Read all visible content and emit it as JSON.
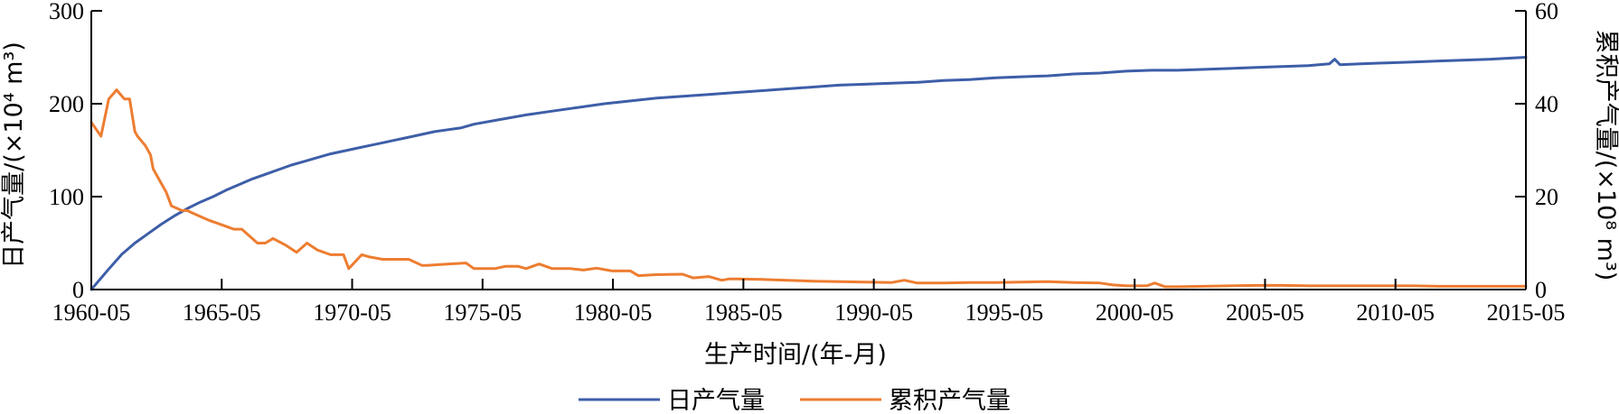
{
  "chart_data": {
    "type": "line",
    "xlabel": "生产时间/(年-月)",
    "ylabel_left": "日产气量/(×10⁴ m³)",
    "ylabel_right": "累积产气量/(×10⁸ m³)",
    "ylim_left": [
      0,
      300
    ],
    "ylim_right": [
      0,
      60
    ],
    "yticks_left": [
      0,
      100,
      200,
      300
    ],
    "yticks_right": [
      0,
      20,
      40,
      60
    ],
    "xlim": [
      1960.33,
      2015.33
    ],
    "xticks": [
      1960.33,
      1965.33,
      1970.33,
      1975.33,
      1980.33,
      1985.33,
      1990.33,
      1995.33,
      2000.33,
      2005.33,
      2010.33,
      2015.33
    ],
    "xtick_labels": [
      "1960-05",
      "1965-05",
      "1970-05",
      "1975-05",
      "1980-05",
      "1985-05",
      "1990-05",
      "1995-05",
      "2000-05",
      "2005-05",
      "2010-05",
      "2015-05"
    ],
    "legend_position": "bottom",
    "colors": {
      "series_1": "#3d5ea8",
      "series_2": "#ed7d31"
    },
    "series": [
      {
        "name": "日产气量",
        "axis": "left",
        "x": [
          1960.33,
          1961.0,
          1961.5,
          1962.0,
          1962.5,
          1963.0,
          1963.5,
          1964.0,
          1964.5,
          1965.0,
          1965.5,
          1966.0,
          1966.5,
          1967.0,
          1967.5,
          1968.0,
          1968.5,
          1969.0,
          1969.5,
          1970.0,
          1970.5,
          1971.0,
          1971.5,
          1972.0,
          1972.5,
          1973.0,
          1973.5,
          1974.0,
          1974.5,
          1975.0,
          1976.0,
          1977.0,
          1978.0,
          1979.0,
          1980.0,
          1981.0,
          1982.0,
          1983.0,
          1984.0,
          1985.0,
          1986.0,
          1987.0,
          1988.0,
          1989.0,
          1990.0,
          1991.0,
          1992.0,
          1993.0,
          1994.0,
          1995.0,
          1996.0,
          1997.0,
          1998.0,
          1999.0,
          2000.0,
          2001.0,
          2002.0,
          2003.0,
          2004.0,
          2005.0,
          2006.0,
          2007.0,
          2007.8,
          2008.0,
          2008.2,
          2009.0,
          2010.0,
          2011.0,
          2012.0,
          2013.0,
          2014.0,
          2015.33
        ],
        "values": [
          0,
          22,
          38,
          50,
          60,
          70,
          79,
          87,
          94,
          100,
          107,
          113,
          119,
          124,
          129,
          134,
          138,
          142,
          146,
          149,
          152,
          155,
          158,
          161,
          164,
          167,
          170,
          172,
          174,
          178,
          183,
          188,
          192,
          196,
          200,
          203,
          206,
          208,
          210,
          212,
          214,
          216,
          218,
          220,
          221,
          222,
          223,
          225,
          226,
          228,
          229,
          230,
          232,
          233,
          235,
          236,
          236,
          237,
          238,
          239,
          240,
          241,
          243,
          248,
          242,
          243,
          244,
          245,
          246,
          247,
          248,
          250
        ]
      },
      {
        "name": "累积产气量",
        "axis": "right",
        "x": [
          1960.33,
          1960.7,
          1961.0,
          1961.3,
          1961.6,
          1961.8,
          1962.0,
          1962.1,
          1962.4,
          1962.6,
          1962.7,
          1963.0,
          1963.2,
          1963.4,
          1963.8,
          1964.0,
          1964.4,
          1964.8,
          1965.3,
          1965.8,
          1966.1,
          1966.7,
          1967.0,
          1967.3,
          1967.8,
          1968.2,
          1968.6,
          1969.0,
          1969.5,
          1970.0,
          1970.2,
          1970.7,
          1971.0,
          1971.5,
          1972.0,
          1972.5,
          1973.0,
          1973.2,
          1974.0,
          1974.7,
          1975.0,
          1975.8,
          1976.2,
          1976.7,
          1977.0,
          1977.5,
          1978.0,
          1978.7,
          1979.2,
          1979.7,
          1980.3,
          1981.0,
          1981.3,
          1982.0,
          1983.0,
          1983.4,
          1984.0,
          1984.5,
          1984.8,
          1985.1,
          1986.0,
          1987.0,
          1988.0,
          1989.0,
          1990.0,
          1991.0,
          1991.5,
          1992.0,
          1993.0,
          1994.0,
          1995.0,
          1996.0,
          1997.0,
          1998.0,
          1999.0,
          1999.5,
          2000.0,
          2000.8,
          2001.1,
          2001.5,
          2002.0,
          2003.0,
          2004.0,
          2005.0,
          2006.0,
          2007.0,
          2008.0,
          2009.0,
          2010.0,
          2011.0,
          2012.0,
          2013.0,
          2014.0,
          2015.33
        ],
        "values": [
          36,
          33,
          41,
          43,
          41,
          41,
          34,
          33,
          31,
          29,
          26,
          23,
          21,
          18,
          17,
          17,
          16,
          15,
          14,
          13,
          13,
          10,
          10,
          11,
          9.5,
          8,
          10,
          8.5,
          7.5,
          7.5,
          4.5,
          7.5,
          7,
          6.5,
          6.5,
          6.5,
          5.2,
          5.2,
          5.5,
          5.7,
          4.5,
          4.5,
          5,
          5,
          4.5,
          5.5,
          4.5,
          4.5,
          4.2,
          4.6,
          4,
          4,
          3,
          3.2,
          3.3,
          2.5,
          2.8,
          2,
          2.3,
          2.3,
          2.2,
          2,
          1.8,
          1.7,
          1.6,
          1.5,
          2,
          1.4,
          1.4,
          1.5,
          1.5,
          1.6,
          1.7,
          1.5,
          1.4,
          1,
          0.8,
          0.8,
          1.4,
          0.6,
          0.6,
          0.7,
          0.8,
          0.9,
          0.9,
          0.8,
          0.8,
          0.8,
          0.8,
          0.8,
          0.7,
          0.7,
          0.7,
          0.7
        ]
      }
    ]
  }
}
